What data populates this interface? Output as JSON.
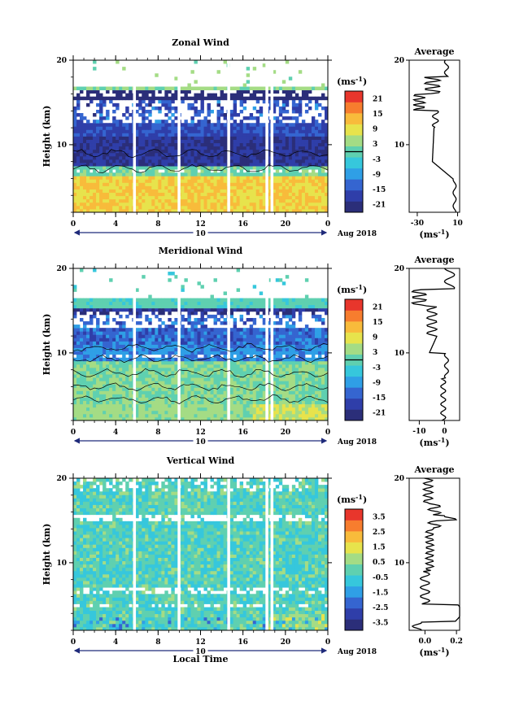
{
  "chart_data": [
    {
      "type": "heatmap",
      "title": "Zonal Wind",
      "ylabel": "Height (km)",
      "y_ticks": [
        "20",
        "10"
      ],
      "x_ticks": [
        "0",
        "4",
        "8",
        "12",
        "16",
        "20",
        "0"
      ],
      "ylim": [
        2,
        20
      ],
      "date_day": "10",
      "date_label": "Aug 2018",
      "unit_label": "(ms",
      "unit_exp": "-1",
      "colorbar_ticks": [
        "21",
        "15",
        "9",
        "3",
        "-3",
        "-9",
        "-15",
        "-21"
      ],
      "colorbar_range": [
        -24,
        24
      ],
      "profile": {
        "title": "Average",
        "x_ticks": [
          "-30",
          "10"
        ],
        "xlim": [
          -38,
          12
        ],
        "y_ticks": [
          "20",
          "10"
        ],
        "unit": "(ms",
        "unit_exp": "-1"
      }
    },
    {
      "type": "heatmap",
      "title": "Meridional Wind",
      "ylabel": "Height (km)",
      "y_ticks": [
        "20",
        "10"
      ],
      "x_ticks": [
        "0",
        "4",
        "8",
        "12",
        "16",
        "20",
        "0"
      ],
      "ylim": [
        2,
        20
      ],
      "date_day": "10",
      "date_label": "Aug 2018",
      "unit_label": "(ms",
      "unit_exp": "-1",
      "colorbar_ticks": [
        "21",
        "15",
        "9",
        "3",
        "-3",
        "-9",
        "-15",
        "-21"
      ],
      "colorbar_range": [
        -24,
        24
      ],
      "profile": {
        "title": "Average",
        "x_ticks": [
          "-10",
          "0"
        ],
        "xlim": [
          -14,
          6
        ],
        "y_ticks": [
          "20",
          "10"
        ],
        "unit": "(ms",
        "unit_exp": "-1"
      }
    },
    {
      "type": "heatmap",
      "title": "Vertical Wind",
      "ylabel": "Height (km)",
      "xlabel": "Local Time",
      "y_ticks": [
        "20",
        "10"
      ],
      "x_ticks": [
        "0",
        "4",
        "8",
        "12",
        "16",
        "20",
        "0"
      ],
      "ylim": [
        2,
        20
      ],
      "date_day": "10",
      "date_label": "Aug 2018",
      "unit_label": "(ms",
      "unit_exp": "-1",
      "colorbar_ticks": [
        "3.5",
        "2.5",
        "1.5",
        "0.5",
        "-0.5",
        "-1.5",
        "-2.5",
        "-3.5"
      ],
      "colorbar_range": [
        -4,
        4
      ],
      "profile": {
        "title": "Average",
        "x_ticks": [
          "0.0",
          "0.2"
        ],
        "xlim": [
          -0.1,
          0.22
        ],
        "y_ticks": [
          "20",
          "10"
        ],
        "unit": "(ms",
        "unit_exp": "-1"
      }
    }
  ],
  "colors": {
    "colormap": [
      "#2b2e79",
      "#2f3ea9",
      "#3565d0",
      "#2f9fe6",
      "#36c7dc",
      "#5fd0b0",
      "#a4dc85",
      "#e7e34c",
      "#f8bb3b",
      "#f77d2e",
      "#e8362c"
    ],
    "axis": "#000000",
    "date_arrow": "#1f2a7a"
  }
}
